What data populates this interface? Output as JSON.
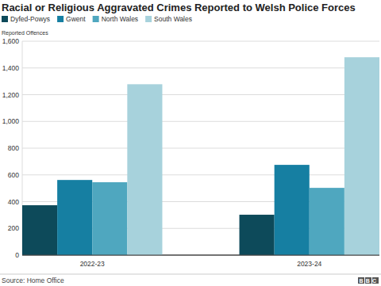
{
  "chart_data": {
    "type": "bar",
    "title": "Racial or Religious Aggravated Crimes Reported to Welsh Police Forces",
    "y_label": "Reported Offences",
    "source": "Source: Home Office",
    "logo": "BBC",
    "categories": [
      "2022-23",
      "2023-24"
    ],
    "series": [
      {
        "name": "Dyfed-Powys",
        "color": "#0d4a5a",
        "values": [
          373,
          302
        ]
      },
      {
        "name": "Gwent",
        "color": "#167fa2",
        "values": [
          562,
          675
        ]
      },
      {
        "name": "North Wales",
        "color": "#4fa7bf",
        "values": [
          545,
          503
        ]
      },
      {
        "name": "South Wales",
        "color": "#a7d2dc",
        "values": [
          1278,
          1480
        ]
      }
    ],
    "ylim": [
      0,
      1600
    ],
    "yticks": [
      0,
      200,
      400,
      600,
      800,
      {
        "value": 1000,
        "label": "1,000"
      },
      {
        "value": 1200,
        "label": "1,200"
      },
      {
        "value": 1400,
        "label": "1,400"
      },
      {
        "value": 1600,
        "label": "1,600"
      }
    ],
    "grid": true,
    "legend": "top-left"
  }
}
